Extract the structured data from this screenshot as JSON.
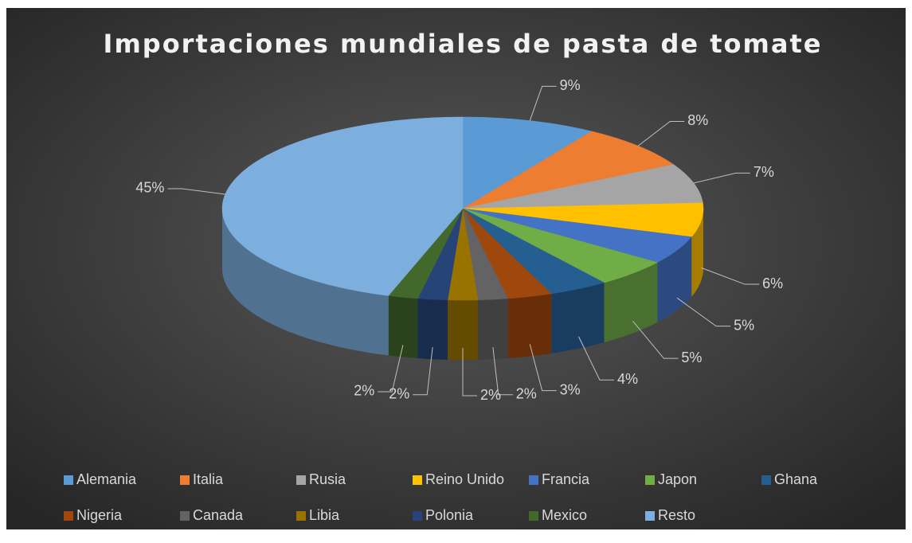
{
  "chart_data": {
    "type": "pie3d",
    "title": "Importaciones mundiales de pasta de tomate",
    "categories": [
      "Alemania",
      "Italia",
      "Rusia",
      "Reino Unido",
      "Francia",
      "Japon",
      "Ghana",
      "Nigeria",
      "Canada",
      "Libia",
      "Polonia",
      "Mexico",
      "Resto"
    ],
    "values": [
      9,
      8,
      7,
      6,
      5,
      5,
      4,
      3,
      2,
      2,
      2,
      2,
      45
    ],
    "value_labels": [
      "9%",
      "8%",
      "7%",
      "6%",
      "5%",
      "5%",
      "4%",
      "3%",
      "2%",
      "2%",
      "2%",
      "2%",
      "45%"
    ],
    "colors": [
      "#5b9bd5",
      "#ed7d31",
      "#a5a5a5",
      "#ffc000",
      "#4472c4",
      "#70ad47",
      "#255e91",
      "#9e480e",
      "#636363",
      "#997300",
      "#264478",
      "#43682b",
      "#7cafdd"
    ],
    "legend": "bottom"
  }
}
